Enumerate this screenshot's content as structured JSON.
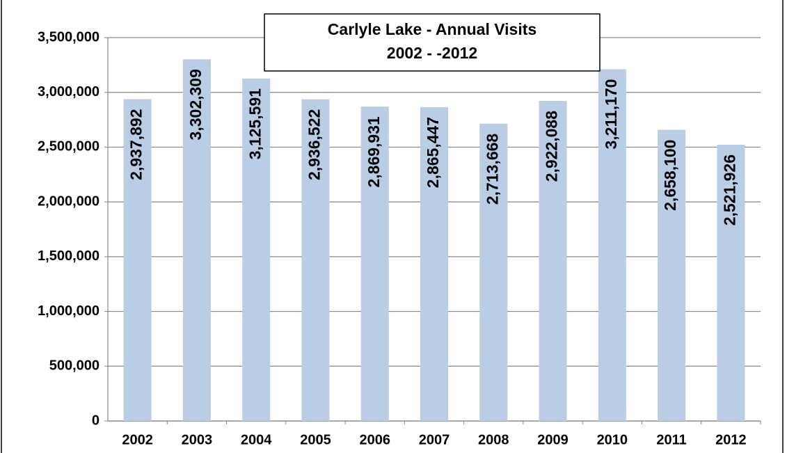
{
  "chart_data": {
    "type": "bar",
    "title": "Carlyle Lake - Annual Visits",
    "subtitle": "2002 - -2012",
    "categories": [
      "2002",
      "2003",
      "2004",
      "2005",
      "2006",
      "2007",
      "2008",
      "2009",
      "2010",
      "2011",
      "2012"
    ],
    "values": [
      2937892,
      3302309,
      3125591,
      2936522,
      2869931,
      2865447,
      2713668,
      2922088,
      3211170,
      2658100,
      2521926
    ],
    "value_labels": [
      "2,937,892",
      "3,302,309",
      "3,125,591",
      "2,936,522",
      "2,869,931",
      "2,865,447",
      "2,713,668",
      "2,922,088",
      "3,211,170",
      "2,658,100",
      "2,521,926"
    ],
    "color": "#b9cde5",
    "ylim": [
      0,
      3500000
    ],
    "yticks": [
      0,
      {
        "value": 500000,
        "label": "500,000"
      },
      {
        "value": 1000000,
        "label": "1,000,000"
      },
      {
        "value": 1500000,
        "label": "1,500,000"
      },
      {
        "value": 2000000,
        "label": "2,000,000"
      },
      {
        "value": 2500000,
        "label": "2,500,000"
      },
      {
        "value": 3000000,
        "label": "3,000,000"
      },
      {
        "value": 3500000,
        "label": "3,500,000"
      }
    ],
    "grid": true
  }
}
